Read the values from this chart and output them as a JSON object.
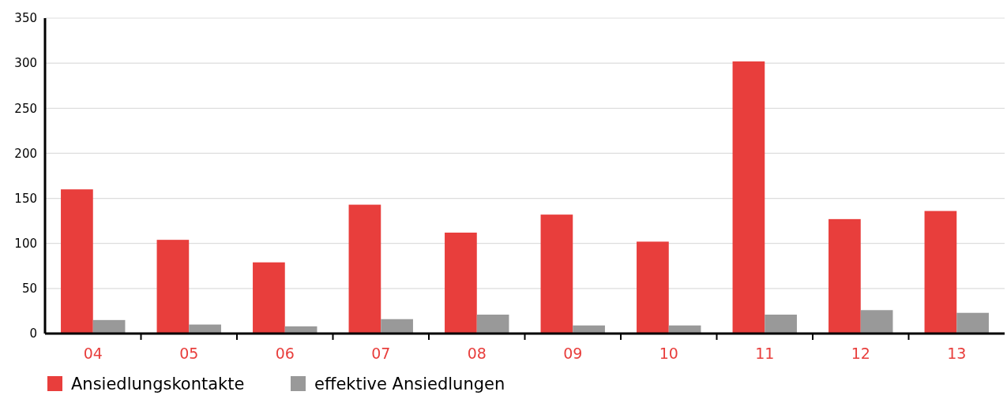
{
  "chart_data": {
    "type": "bar",
    "categories": [
      "04",
      "05",
      "06",
      "07",
      "08",
      "09",
      "10",
      "11",
      "12",
      "13"
    ],
    "series": [
      {
        "name": "Ansiedlungskontakte",
        "color": "#e83e3c",
        "values": [
          160,
          104,
          79,
          143,
          112,
          132,
          102,
          302,
          127,
          136
        ]
      },
      {
        "name": "effektive Ansiedlungen",
        "color": "#999999",
        "values": [
          15,
          10,
          8,
          16,
          21,
          9,
          9,
          21,
          26,
          23
        ]
      }
    ],
    "ylim": [
      0,
      350
    ],
    "yticks": [
      0,
      50,
      100,
      150,
      200,
      250,
      300,
      350
    ],
    "grid": "y",
    "legend": "bottom left"
  }
}
